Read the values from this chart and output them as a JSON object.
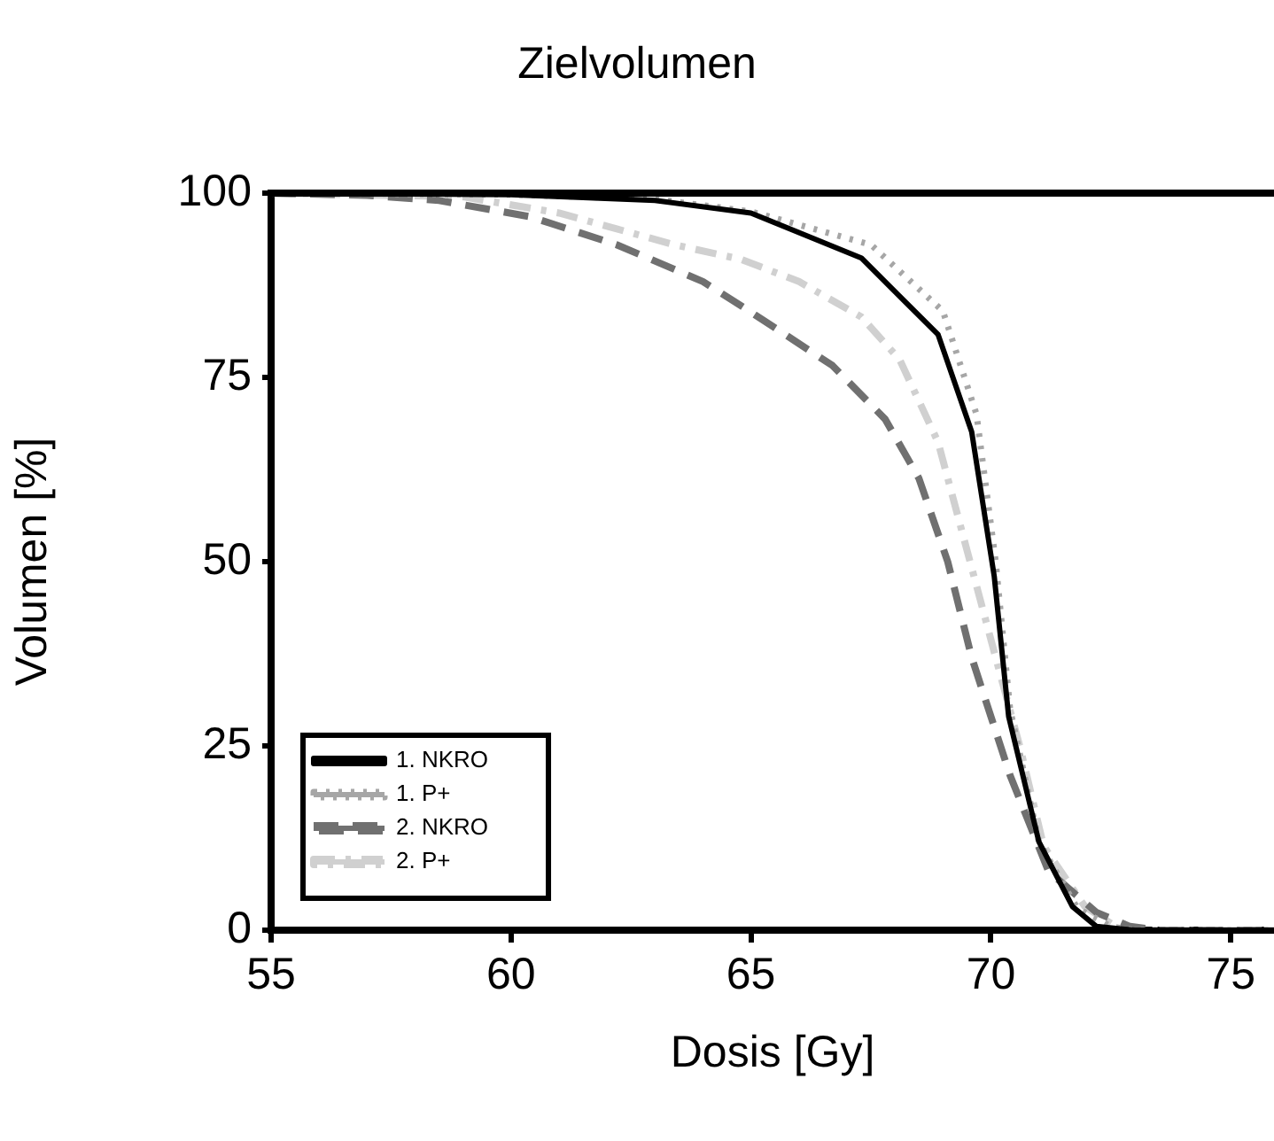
{
  "chart_data": {
    "type": "line",
    "title": "Zielvolumen",
    "xlabel": "Dosis [Gy]",
    "ylabel": "Volumen [%]",
    "xlim": [
      55,
      75.9
    ],
    "xticks": [
      55,
      60,
      65,
      70,
      75
    ],
    "ylim": [
      0,
      100
    ],
    "yticks": [
      0,
      25,
      50,
      75,
      100
    ],
    "grid": false,
    "legend": "bottom left",
    "marker": "none",
    "series": [
      {
        "name": "1. NKRO",
        "color": "#000000",
        "line_style": "solid",
        "x": [
          55,
          60,
          63,
          65,
          67.3,
          68.9,
          69.6,
          70.07,
          70.37,
          71.0,
          71.7,
          72.2,
          73,
          75.9
        ],
        "values": [
          100,
          99.8,
          99,
          97.3,
          91.2,
          80.8,
          67.6,
          48,
          29,
          12,
          3.2,
          0.5,
          0,
          0
        ]
      },
      {
        "name": "1. P+",
        "color": "#a6a6a6",
        "line_style": "dotted",
        "x": [
          55,
          60,
          63,
          65,
          67.5,
          69,
          69.7,
          70.1,
          70.4,
          71,
          71.8,
          72.5,
          73,
          75.9
        ],
        "values": [
          100,
          99.8,
          99.2,
          97.5,
          93,
          84,
          70,
          50,
          30,
          12,
          3,
          0.5,
          0,
          0
        ]
      },
      {
        "name": "2. NKRO",
        "color": "#707070",
        "line_style": "dashed",
        "x": [
          55,
          57,
          58.5,
          60.4,
          62.2,
          64,
          64.8,
          66.7,
          67.8,
          68.5,
          69.1,
          69.6,
          70.4,
          71.2,
          72.2,
          72.9,
          73.5,
          75.9
        ],
        "values": [
          100,
          99.7,
          99,
          96.8,
          93,
          88,
          84.7,
          76.6,
          69.3,
          61.3,
          50,
          37,
          21,
          8,
          2.4,
          0.5,
          0,
          0
        ]
      },
      {
        "name": "2. P+",
        "color": "#d0d0d0",
        "line_style": "dashdot",
        "x": [
          55,
          59,
          61,
          63.4,
          64.8,
          66,
          67.3,
          68.1,
          68.9,
          69.5,
          70.1,
          70.6,
          71.1,
          71.96,
          72.6,
          73.2,
          75.9
        ],
        "values": [
          100,
          99.5,
          97.3,
          93,
          91,
          88,
          83.2,
          77.4,
          66.2,
          51.6,
          37,
          25,
          11.4,
          3.2,
          0.5,
          0,
          0
        ]
      }
    ]
  }
}
